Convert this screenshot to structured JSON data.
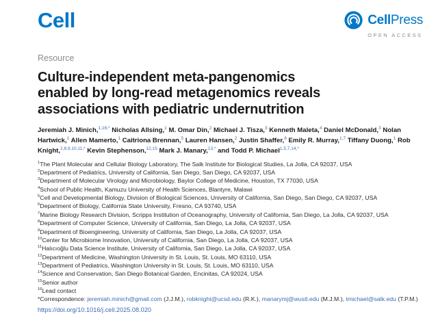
{
  "colors": {
    "brand-blue": "#0077c8",
    "link-blue": "#3a6ab8",
    "muted-gray": "#8c8c8c",
    "text-dark": "#1a1a1a"
  },
  "icons": {
    "cellpress_logo": "concentric-white-arcs-in-blue-circle"
  },
  "header": {
    "journal_logo": "Cell",
    "publisher_cell": "Cell",
    "publisher_press": "Press",
    "open_access_label": "OPEN ACCESS"
  },
  "article": {
    "type_label": "Resource",
    "title": "Culture-independent meta-pangenomics enabled by long-read metagenomics reveals associations with pediatric undernutrition",
    "title_lines": [
      "Culture-independent meta-pangenomics",
      "enabled by long-read metagenomics reveals",
      "associations with pediatric undernutrition"
    ]
  },
  "authors": [
    {
      "name": "Jeremiah J. Minich,",
      "sup": "1,16,*"
    },
    {
      "name": "Nicholas Allsing,",
      "sup": "1"
    },
    {
      "name": "M. Omar Din,",
      "sup": "2"
    },
    {
      "name": "Michael J. Tisza,",
      "sup": "3"
    },
    {
      "name": "Kenneth Maleta,",
      "sup": "4"
    },
    {
      "name": "Daniel McDonald,",
      "sup": "3"
    },
    {
      "name": "Nolan Hartwick,",
      "sup": "1"
    },
    {
      "name": "Allen Mamerto,",
      "sup": "1"
    },
    {
      "name": "Caitriona Brennan,",
      "sup": "5"
    },
    {
      "name": "Lauren Hansen,",
      "sup": "2"
    },
    {
      "name": "Justin Shaffer,",
      "sup": "6"
    },
    {
      "name": "Emily R. Murray,",
      "sup": "1,7"
    },
    {
      "name": "Tiffany Duong,",
      "sup": "1"
    },
    {
      "name": "Rob Knight,",
      "sup": "2,8,9,10,11,*"
    },
    {
      "name": "Kevin Stephenson,",
      "sup": "12,15"
    },
    {
      "name": "Mark J. Manary,",
      "sup": "13,*"
    },
    {
      "name": "and Todd P. Michael",
      "sup": "1,5,7,14,*"
    }
  ],
  "affiliations": [
    {
      "num": "1",
      "text": "The Plant Molecular and Cellular Biology Laboratory, The Salk Institute for Biological Studies, La Jolla, CA 92037, USA"
    },
    {
      "num": "2",
      "text": "Department of Pediatrics, University of California, San Diego, San Diego, CA 92037, USA"
    },
    {
      "num": "3",
      "text": "Department of Molecular Virology and Microbiology, Baylor College of Medicine, Houston, TX 77030, USA"
    },
    {
      "num": "4",
      "text": "School of Public Health, Kamuzu University of Health Sciences, Blantyre, Malawi"
    },
    {
      "num": "5",
      "text": "Cell and Developmental Biology, Division of Biological Sciences, University of California, San Diego, San Diego, CA 92037, USA"
    },
    {
      "num": "6",
      "text": "Department of Biology, California State University, Fresno, CA 93740, USA"
    },
    {
      "num": "7",
      "text": "Marine Biology Research Division, Scripps Institution of Oceanography, University of California, San Diego, La Jolla, CA 92037, USA"
    },
    {
      "num": "8",
      "text": "Department of Computer Science, University of California, San Diego, La Jolla, CA 92037, USA"
    },
    {
      "num": "9",
      "text": "Department of Bioengineering, University of California, San Diego, La Jolla, CA 92037, USA"
    },
    {
      "num": "10",
      "text": "Center for Microbiome Innovation, University of California, San Diego, La Jolla, CA 92037, USA"
    },
    {
      "num": "11",
      "text": "Halıcıoğlu Data Science Institute, University of California, San Diego, La Jolla, CA 92037, USA"
    },
    {
      "num": "12",
      "text": "Department of Medicine, Washington University in St. Louis, St. Louis, MO 63110, USA"
    },
    {
      "num": "13",
      "text": "Department of Pediatrics, Washington University in St. Louis, St. Louis, MO 63110, USA"
    },
    {
      "num": "14",
      "text": "Science and Conservation, San Diego Botanical Garden, Encinitas, CA 92024, USA"
    },
    {
      "num": "15",
      "text": "Senior author"
    },
    {
      "num": "16",
      "text": "Lead contact"
    }
  ],
  "correspondence": {
    "segments": [
      {
        "text": "*Correspondence: ",
        "link": false
      },
      {
        "text": "jeremiah.minich@gmail.com",
        "link": true
      },
      {
        "text": " (J.J.M.), ",
        "link": false
      },
      {
        "text": "robknight@ucsd.edu",
        "link": true
      },
      {
        "text": " (R.K.), ",
        "link": false
      },
      {
        "text": "manarymj@wustl.edu",
        "link": true
      },
      {
        "text": " (M.J.M.), ",
        "link": false
      },
      {
        "text": "tmichael@salk.edu",
        "link": true
      },
      {
        "text": " (T.P.M.)",
        "link": false
      }
    ]
  },
  "doi": "https://doi.org/10.1016/j.cell.2025.08.020"
}
